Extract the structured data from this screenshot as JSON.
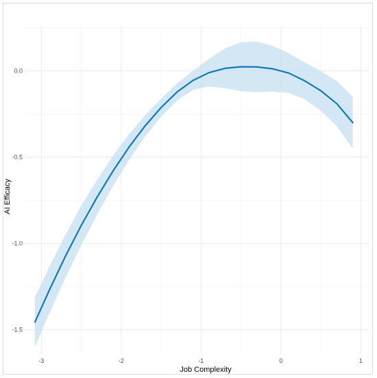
{
  "chart_data": {
    "type": "line",
    "title": "",
    "xlabel": "Job Complexity",
    "ylabel": "AI Efficacy",
    "xlim": [
      -3.2,
      1.1
    ],
    "ylim": [
      -1.64,
      0.26
    ],
    "x_ticks": [
      -3,
      -2,
      -1,
      0,
      1
    ],
    "y_ticks": [
      0.0,
      -0.5,
      -1.0,
      -1.5
    ],
    "x_tick_labels": [
      "-3",
      "-2",
      "-1",
      "0",
      "1"
    ],
    "y_tick_labels": [
      "0.0",
      "-0.5",
      "-1.0",
      "-1.5"
    ],
    "grid": true,
    "legend": "none",
    "line_color": "#1279b5",
    "band_color": "#c5dff0",
    "series": [
      {
        "x": [
          -3.08,
          -2.9,
          -2.7,
          -2.5,
          -2.3,
          -2.1,
          -1.9,
          -1.7,
          -1.5,
          -1.3,
          -1.1,
          -0.9,
          -0.7,
          -0.5,
          -0.3,
          -0.1,
          0.1,
          0.3,
          0.5,
          0.7,
          0.9
        ],
        "y": [
          -1.455,
          -1.27,
          -1.075,
          -0.895,
          -0.73,
          -0.578,
          -0.44,
          -0.318,
          -0.212,
          -0.122,
          -0.055,
          -0.01,
          0.015,
          0.024,
          0.023,
          0.012,
          -0.013,
          -0.058,
          -0.115,
          -0.19,
          -0.3
        ],
        "lower": [
          -1.6,
          -1.405,
          -1.2,
          -1.01,
          -0.83,
          -0.665,
          -0.515,
          -0.38,
          -0.265,
          -0.172,
          -0.11,
          -0.09,
          -0.1,
          -0.118,
          -0.124,
          -0.12,
          -0.128,
          -0.165,
          -0.232,
          -0.32,
          -0.45
        ],
        "upper": [
          -1.31,
          -1.135,
          -0.95,
          -0.78,
          -0.63,
          -0.49,
          -0.365,
          -0.256,
          -0.159,
          -0.072,
          0.0,
          0.07,
          0.13,
          0.166,
          0.17,
          0.144,
          0.102,
          0.049,
          -0.002,
          -0.06,
          -0.15
        ]
      }
    ]
  }
}
